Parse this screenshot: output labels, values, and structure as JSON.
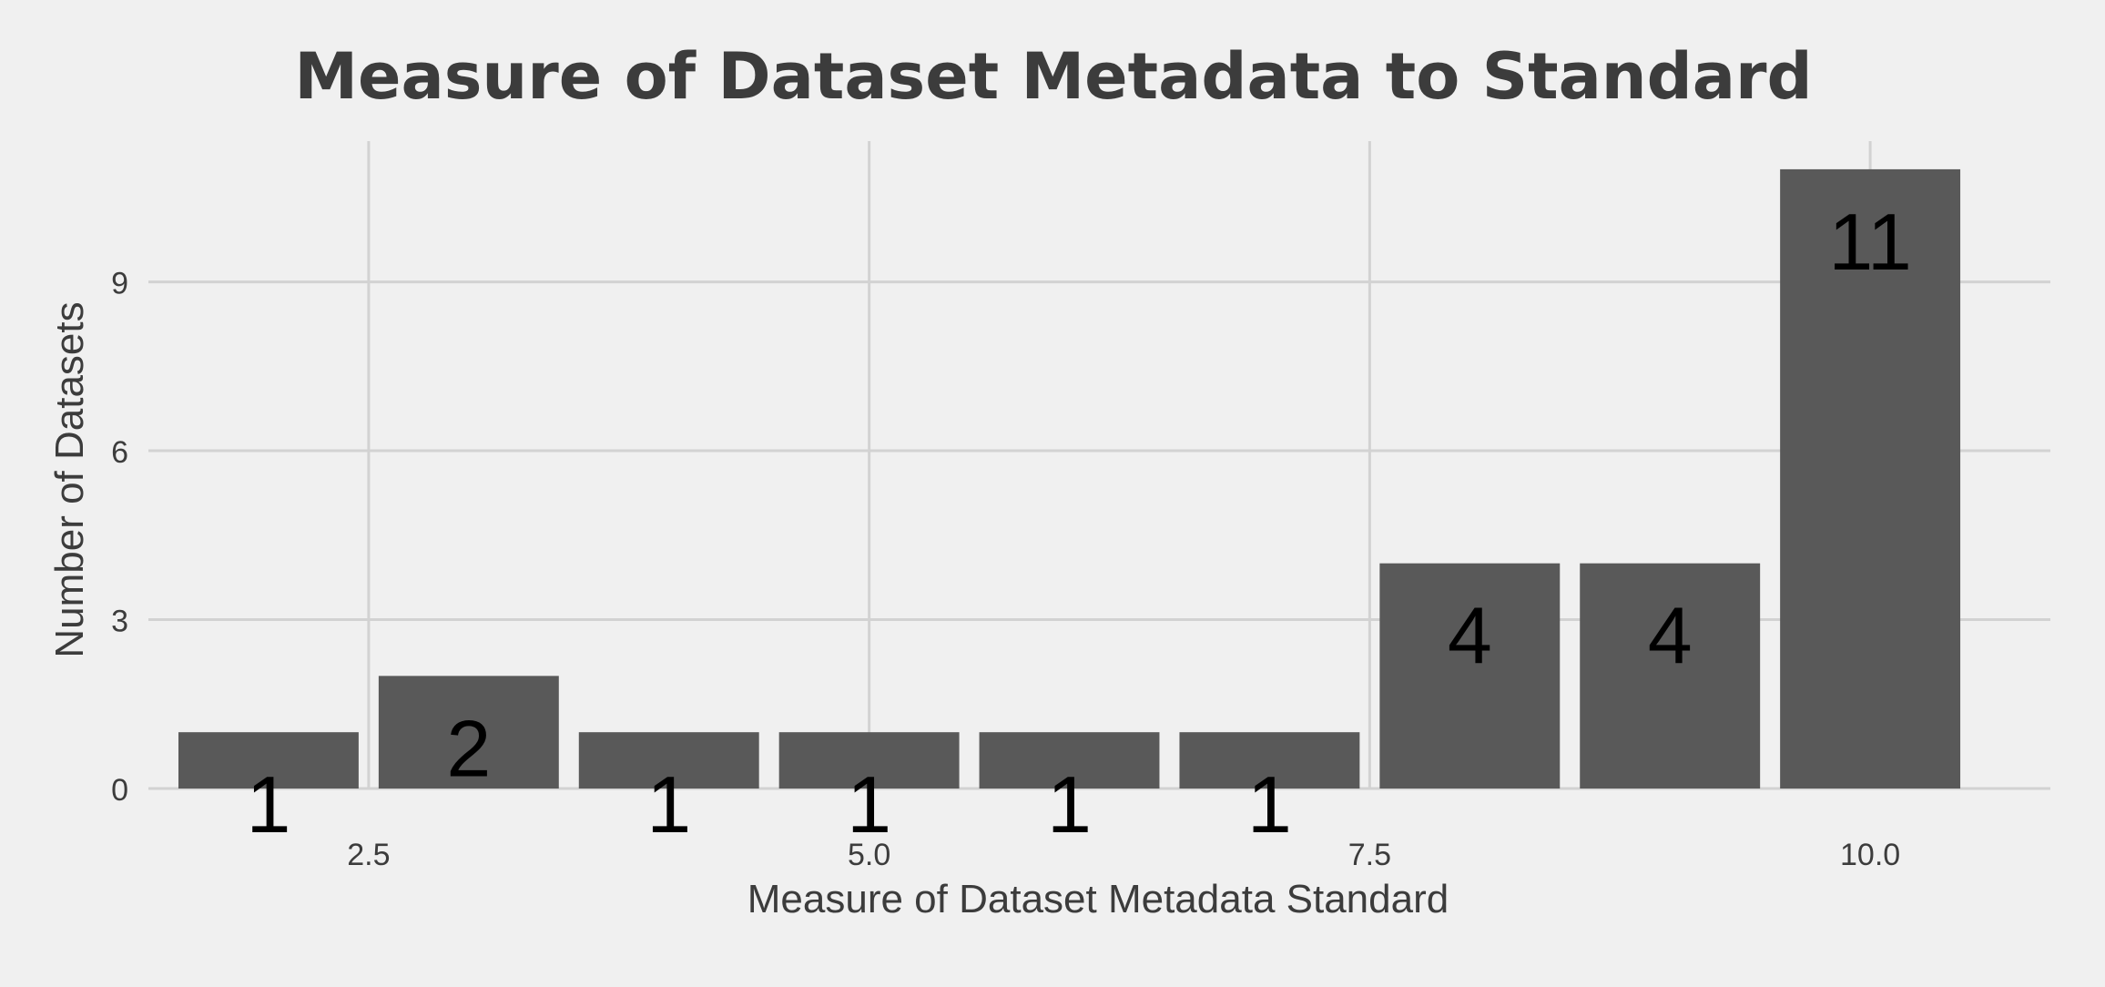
{
  "chart_data": {
    "type": "bar",
    "title": "Measure of Dataset Metadata to Standard",
    "xlabel": "Measure of Dataset Metadata Standard",
    "ylabel": "Number of Datasets",
    "x": [
      2,
      3,
      4,
      5,
      6,
      7,
      8,
      9,
      10
    ],
    "values": [
      1,
      2,
      1,
      1,
      1,
      1,
      4,
      4,
      11
    ],
    "data_labels": [
      "1",
      "2",
      "1",
      "1",
      "1",
      "1",
      "4",
      "4",
      "11"
    ],
    "xlim": [
      1.4,
      10.9
    ],
    "ylim": [
      0,
      11.5
    ],
    "x_ticks": [
      2.5,
      5.0,
      7.5,
      10.0
    ],
    "x_tick_labels": [
      "2.5",
      "5.0",
      "7.5",
      "10.0"
    ],
    "y_ticks": [
      0,
      3,
      6,
      9
    ],
    "y_tick_labels": [
      "0",
      "3",
      "6",
      "9"
    ],
    "grid": true,
    "legend": "none",
    "colors": {
      "background": "#f0f0f0",
      "bar": "#595959",
      "grid": "#d2d2d2",
      "title": "#3c3c3c",
      "axis_text": "#3c3c3c",
      "label_text": "#000000"
    }
  }
}
